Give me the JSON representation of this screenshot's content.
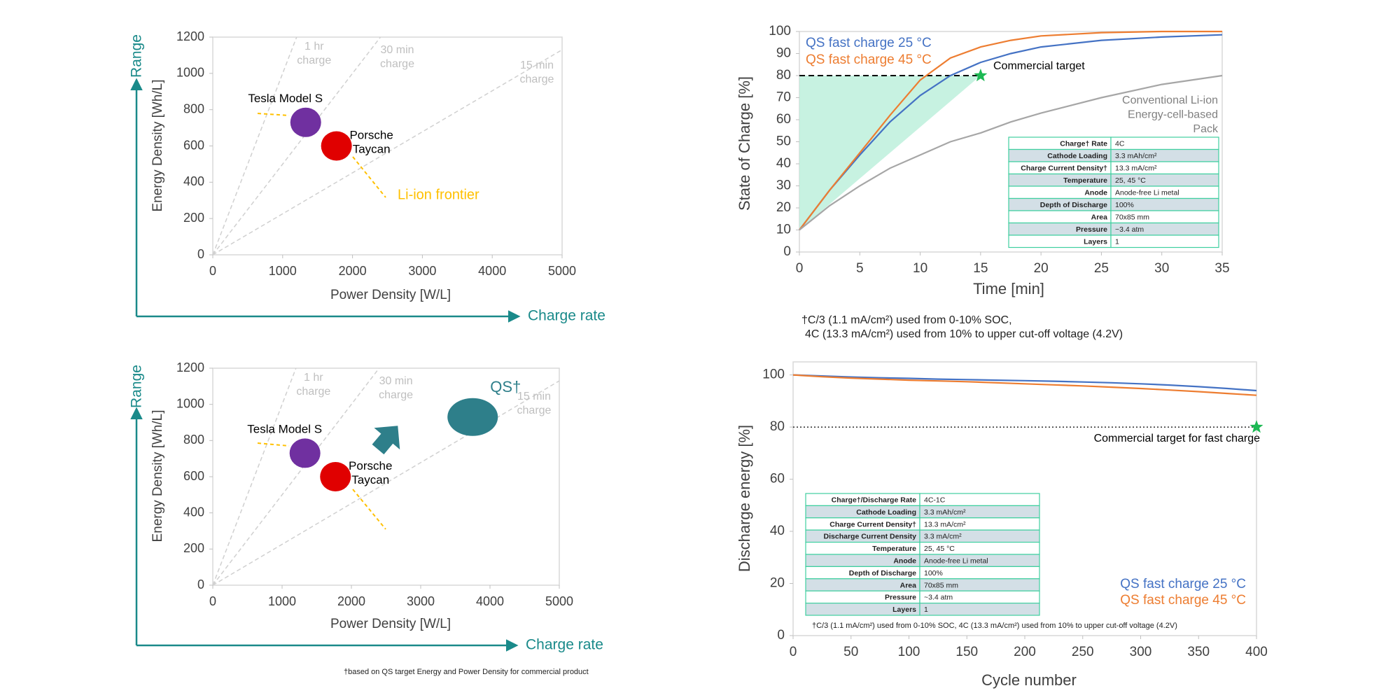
{
  "chart_data": [
    {
      "type": "scatter",
      "xlabel": "Power Density [W/L]",
      "ylabel": "Energy Density [Wh/L]",
      "xlim": [
        0,
        5000
      ],
      "ylim": [
        0,
        1200
      ],
      "xticks": [
        0,
        1000,
        2000,
        3000,
        4000,
        5000
      ],
      "yticks": [
        0,
        200,
        400,
        600,
        800,
        1000,
        1200
      ],
      "points": [
        {
          "label": [
            "Tesla Model S"
          ],
          "x": 1330,
          "y": 730,
          "color": "#7030a0"
        },
        {
          "label": [
            "Porsche",
            "Taycan"
          ],
          "x": 1770,
          "y": 600,
          "color": "#e00000"
        }
      ],
      "charge_lines": [
        {
          "label": [
            "1 hr",
            "charge"
          ],
          "x": 1200,
          "y": 1200
        },
        {
          "label": [
            "30 min",
            "charge"
          ],
          "x": 2400,
          "y": 1200
        },
        {
          "label": [
            "15 min",
            "charge"
          ],
          "x": 5000,
          "y": 1130
        }
      ],
      "annotation": "Li-ion frontier",
      "x_arrow_label": "Charge rate",
      "y_arrow_label": "Range"
    },
    {
      "type": "scatter",
      "xlabel": "Power Density [W/L]",
      "ylabel": "Energy Density [Wh/L]",
      "xlim": [
        0,
        5000
      ],
      "ylim": [
        0,
        1200
      ],
      "xticks": [
        0,
        1000,
        2000,
        3000,
        4000,
        5000
      ],
      "yticks": [
        0,
        200,
        400,
        600,
        800,
        1000,
        1200
      ],
      "points": [
        {
          "label": [
            "Tesla Model S"
          ],
          "x": 1330,
          "y": 730,
          "color": "#7030a0"
        },
        {
          "label": [
            "Porsche",
            "Taycan"
          ],
          "x": 1770,
          "y": 600,
          "color": "#e00000"
        },
        {
          "label": [
            "QS†"
          ],
          "x": 3750,
          "y": 930,
          "color": "#2e7f8a"
        }
      ],
      "charge_lines": [
        {
          "label": [
            "1 hr",
            "charge"
          ],
          "x": 1200,
          "y": 1200
        },
        {
          "label": [
            "30 min",
            "charge"
          ],
          "x": 2400,
          "y": 1200
        },
        {
          "label": [
            "15 min",
            "charge"
          ],
          "x": 5000,
          "y": 1130
        }
      ],
      "x_arrow_label": "Charge rate",
      "y_arrow_label": "Range",
      "footnote": [
        "†based on QS target Energy and Power Density for commercial product"
      ]
    },
    {
      "type": "line",
      "xlabel": "Time [min]",
      "ylabel": "State of Charge [%]",
      "xlim": [
        0,
        35
      ],
      "ylim": [
        0,
        100
      ],
      "xticks": [
        0,
        5,
        10,
        15,
        20,
        25,
        30,
        35
      ],
      "yticks": [
        0,
        10,
        20,
        30,
        40,
        50,
        60,
        70,
        80,
        90,
        100
      ],
      "x": [
        0,
        2.5,
        5,
        7.5,
        10,
        12.5,
        15,
        17.5,
        20,
        25,
        30,
        35
      ],
      "series": [
        {
          "name": [
            "QS fast charge 25 °C"
          ],
          "color": "#4472c4",
          "values": [
            10,
            28,
            44,
            59,
            71,
            80,
            86,
            90,
            93,
            96,
            97.5,
            98.5
          ]
        },
        {
          "name": [
            "QS fast charge 45 °C"
          ],
          "color": "#ed7d31",
          "values": [
            10,
            28,
            45,
            62,
            78,
            88,
            93,
            96,
            98,
            99.5,
            100,
            100
          ]
        },
        {
          "name": [
            "Conventional Li-ion",
            "Energy-cell-based",
            "Pack"
          ],
          "color": "#a6a6a6",
          "values": [
            10,
            21,
            30,
            38,
            44,
            50,
            54,
            59,
            63,
            70,
            76,
            80
          ]
        }
      ],
      "target": {
        "label": "Commercial target",
        "value": 80,
        "x": 15,
        "style": "dashed",
        "shade": true
      },
      "table": [
        [
          "Charge† Rate",
          "4C"
        ],
        [
          "Cathode Loading",
          "3.3 mAh/cm²"
        ],
        [
          "Charge Current Density†",
          "13.3 mA/cm²"
        ],
        [
          "Temperature",
          "25, 45 °C"
        ],
        [
          "Anode",
          "Anode-free Li metal"
        ],
        [
          "Depth of Discharge",
          "100%"
        ],
        [
          "Area",
          "70x85 mm"
        ],
        [
          "Pressure",
          "~3.4 atm"
        ],
        [
          "Layers",
          "1"
        ]
      ],
      "footnote": [
        "†C/3 (1.1 mA/cm²) used from 0-10% SOC,",
        "4C (13.3 mA/cm²) used from 10% to upper cut-off voltage (4.2V)"
      ]
    },
    {
      "type": "line",
      "xlabel": "Cycle number",
      "ylabel": "Discharge energy [%]",
      "xlim": [
        0,
        400
      ],
      "ylim": [
        0,
        105
      ],
      "xticks": [
        0,
        50,
        100,
        150,
        200,
        250,
        300,
        350,
        400
      ],
      "yticks": [
        0,
        20,
        40,
        60,
        80,
        100
      ],
      "x": [
        0,
        25,
        50,
        75,
        100,
        125,
        150,
        175,
        200,
        225,
        250,
        275,
        300,
        325,
        350,
        375,
        400
      ],
      "series": [
        {
          "name": [
            "QS fast charge 25 °C"
          ],
          "color": "#4472c4",
          "values": [
            100,
            99.6,
            99.2,
            98.9,
            98.7,
            98.4,
            98.2,
            98,
            97.8,
            97.6,
            97.3,
            97,
            96.6,
            96.1,
            95.5,
            94.8,
            94
          ]
        },
        {
          "name": [
            "QS fast charge 45 °C"
          ],
          "color": "#ed7d31",
          "values": [
            100,
            99.3,
            98.8,
            98.4,
            98,
            97.7,
            97.4,
            97,
            96.6,
            96.2,
            95.8,
            95.3,
            94.8,
            94.2,
            93.6,
            92.9,
            92.2
          ]
        }
      ],
      "target": {
        "label": "Commercial target for fast charge",
        "value": 80,
        "x": 400,
        "style": "dotted",
        "shade": false
      },
      "table": [
        [
          "Charge†/Discharge Rate",
          "4C-1C"
        ],
        [
          "Cathode Loading",
          "3.3 mAh/cm²"
        ],
        [
          "Charge Current Density†",
          "13.3 mA/cm²"
        ],
        [
          "Discharge Current Density",
          "3.3 mA/cm²"
        ],
        [
          "Temperature",
          "25, 45 °C"
        ],
        [
          "Anode",
          "Anode-free Li metal"
        ],
        [
          "Depth of Discharge",
          "100%"
        ],
        [
          "Area",
          "70x85 mm"
        ],
        [
          "Pressure",
          "~3.4 atm"
        ],
        [
          "Layers",
          "1"
        ]
      ],
      "footnote": [
        "†C/3 (1.1 mA/cm²) used from 0-10% SOC, 4C (13.3 mA/cm²) used from 10% to upper cut-off voltage (4.2V)"
      ]
    }
  ]
}
